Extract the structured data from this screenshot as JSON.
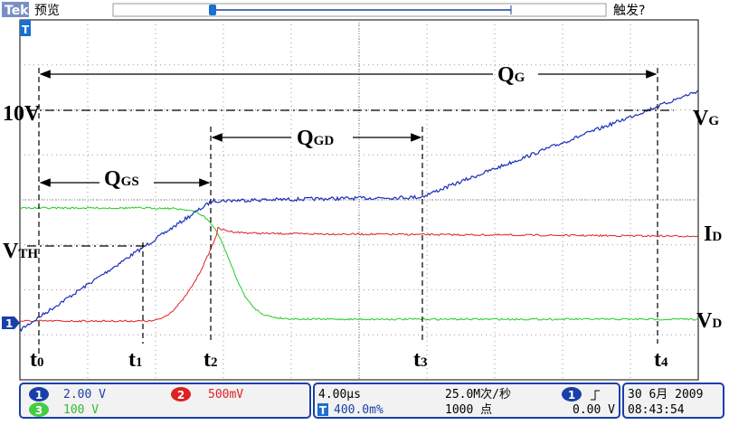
{
  "header": {
    "brand": "Tek",
    "mode": "预览",
    "trigger_status": "触发?",
    "trigger_marker": "T"
  },
  "screen": {
    "channel_marker": "1"
  },
  "annotations": {
    "qg": {
      "main": "Q",
      "sub": "G"
    },
    "qgd": {
      "main": "Q",
      "sub": "GD"
    },
    "qgs": {
      "main": "Q",
      "sub": "GS"
    },
    "vg": {
      "main": "V",
      "sub": "G"
    },
    "id": {
      "main": "I",
      "sub": "D"
    },
    "vd": {
      "main": "V",
      "sub": "D"
    },
    "v10": "10V",
    "vth": {
      "main": "V",
      "sub": "TH"
    },
    "times": [
      {
        "main": "t",
        "sub": "0"
      },
      {
        "main": "t",
        "sub": "1"
      },
      {
        "main": "t",
        "sub": "2"
      },
      {
        "main": "t",
        "sub": "3"
      },
      {
        "main": "t",
        "sub": "4"
      }
    ]
  },
  "status": {
    "ch1": {
      "badge": "1",
      "scale": "2.00 V"
    },
    "ch2": {
      "badge": "2",
      "scale": "500mV"
    },
    "ch3": {
      "badge": "3",
      "scale": "100 V"
    },
    "timebase": "4.00µs",
    "sample_rate": "25.0M次/秒",
    "trigger_pos_badge": "T",
    "trigger_pos": "400.0m%",
    "record_length": "1000 点",
    "trigger_badge": "1",
    "trigger_level": "0.00 V",
    "date": "30 6月 2009",
    "time": "08:43:54"
  }
}
